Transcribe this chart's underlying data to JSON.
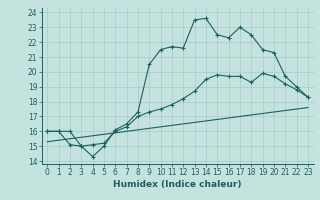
{
  "xlabel": "Humidex (Indice chaleur)",
  "xlim": [
    -0.5,
    23.5
  ],
  "ylim": [
    13.8,
    24.3
  ],
  "yticks": [
    14,
    15,
    16,
    17,
    18,
    19,
    20,
    21,
    22,
    23,
    24
  ],
  "xticks": [
    0,
    1,
    2,
    3,
    4,
    5,
    6,
    7,
    8,
    9,
    10,
    11,
    12,
    13,
    14,
    15,
    16,
    17,
    18,
    19,
    20,
    21,
    22,
    23
  ],
  "bg_color": "#c5e3de",
  "grid_color": "#a8ccc8",
  "line_color": "#1a6060",
  "line1_x": [
    0,
    1,
    2,
    3,
    4,
    5,
    6,
    7,
    8,
    9,
    10,
    11,
    12,
    13,
    14,
    15,
    16,
    17,
    18,
    19,
    20,
    21,
    22,
    23
  ],
  "line1_y": [
    16,
    16,
    16,
    15,
    14.3,
    15,
    16.1,
    16.5,
    17.3,
    20.5,
    21.5,
    21.7,
    21.6,
    23.5,
    23.6,
    22.5,
    22.3,
    23.0,
    22.5,
    21.5,
    21.3,
    19.7,
    19.0,
    18.3
  ],
  "line2_x": [
    0,
    1,
    2,
    3,
    4,
    5,
    6,
    7,
    8,
    9,
    10,
    11,
    12,
    13,
    14,
    15,
    16,
    17,
    18,
    19,
    20,
    21,
    22,
    23
  ],
  "line2_y": [
    16,
    16,
    15.1,
    15.0,
    15.1,
    15.2,
    16.0,
    16.3,
    17.0,
    17.3,
    17.5,
    17.8,
    18.2,
    18.7,
    19.5,
    19.8,
    19.7,
    19.7,
    19.3,
    19.9,
    19.7,
    19.2,
    18.8,
    18.3
  ],
  "line3_x": [
    0,
    23
  ],
  "line3_y": [
    15.3,
    17.6
  ]
}
